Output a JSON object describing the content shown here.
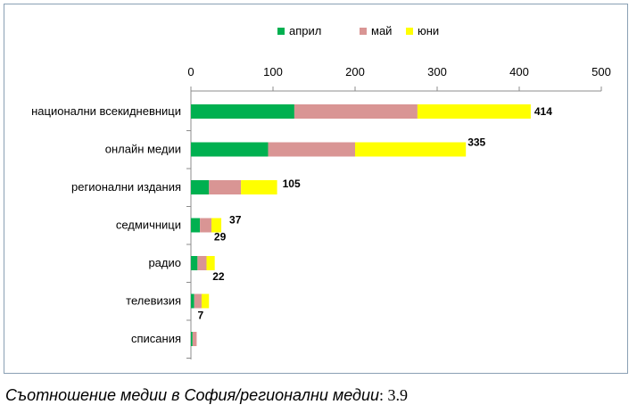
{
  "chart_data": {
    "type": "bar",
    "orientation": "horizontal",
    "stacked": true,
    "categories": [
      "национални всекидневници",
      "онлайн медии",
      "регионални издания",
      "седмичници",
      "радио",
      "телевизия",
      "списания"
    ],
    "series": [
      {
        "name": "април",
        "color": "#00b050",
        "values": [
          126,
          94,
          22,
          11,
          8,
          4,
          2
        ]
      },
      {
        "name": "май",
        "color": "#d99594",
        "values": [
          150,
          106,
          39,
          14,
          11,
          9,
          5
        ]
      },
      {
        "name": "юни",
        "color": "#ffff00",
        "values": [
          138,
          135,
          44,
          12,
          10,
          9,
          0
        ]
      }
    ],
    "totals_labels": [
      "414",
      "335",
      "105",
      "37",
      "29",
      "22",
      "7"
    ],
    "xlim": [
      0,
      500
    ],
    "xticks": [
      "0",
      "100",
      "200",
      "300",
      "400",
      "500"
    ],
    "x_axis_position": "top",
    "legend_position": "top",
    "grid": false
  },
  "caption": {
    "text": "Съотношение медии в София/регионални медии",
    "value": ": 3.9"
  }
}
